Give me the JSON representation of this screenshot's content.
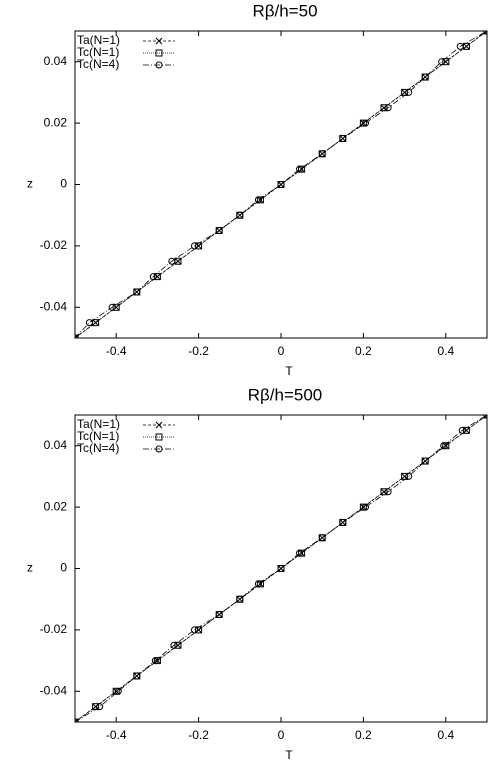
{
  "chart_data": [
    {
      "type": "line",
      "title": "Rβ/h=50",
      "x_label": "T",
      "y_label": "z",
      "xlim": [
        -0.5,
        0.5
      ],
      "ylim": [
        -0.05,
        0.05
      ],
      "xticks": [
        -0.4,
        -0.2,
        0,
        0.2,
        0.4
      ],
      "yticks": [
        -0.04,
        -0.02,
        0,
        0.02,
        0.04
      ],
      "legend": "upper left",
      "series": [
        {
          "name": "Ta(N=1)",
          "color": "#000000",
          "marker": "x",
          "dash": "3,2",
          "x": [
            -0.5,
            -0.45,
            -0.4,
            -0.35,
            -0.3,
            -0.25,
            -0.2,
            -0.15,
            -0.1,
            -0.05,
            0,
            0.05,
            0.1,
            0.15,
            0.2,
            0.25,
            0.3,
            0.35,
            0.4,
            0.45,
            0.5
          ],
          "values": [
            -0.05,
            -0.045,
            -0.04,
            -0.035,
            -0.03,
            -0.025,
            -0.02,
            -0.015,
            -0.01,
            -0.005,
            0,
            0.005,
            0.01,
            0.015,
            0.02,
            0.025,
            0.03,
            0.035,
            0.04,
            0.045,
            0.05
          ]
        },
        {
          "name": "Tc(N=1)",
          "color": "#000000",
          "marker": "square",
          "dash": "1,1",
          "x": [
            -0.5,
            -0.45,
            -0.4,
            -0.35,
            -0.3,
            -0.25,
            -0.2,
            -0.15,
            -0.1,
            -0.05,
            0,
            0.05,
            0.1,
            0.15,
            0.2,
            0.25,
            0.3,
            0.35,
            0.4,
            0.45,
            0.5
          ],
          "values": [
            -0.05,
            -0.045,
            -0.04,
            -0.035,
            -0.03,
            -0.025,
            -0.02,
            -0.015,
            -0.01,
            -0.005,
            0,
            0.005,
            0.01,
            0.015,
            0.02,
            0.025,
            0.03,
            0.035,
            0.04,
            0.045,
            0.05
          ]
        },
        {
          "name": "Tc(N=4)",
          "color": "#000000",
          "marker": "circle",
          "dash": "6,2,1,2",
          "x": [
            -0.5,
            -0.465,
            -0.41,
            -0.35,
            -0.31,
            -0.265,
            -0.21,
            -0.15,
            -0.1,
            -0.055,
            0,
            0.045,
            0.1,
            0.15,
            0.205,
            0.26,
            0.31,
            0.35,
            0.39,
            0.435,
            0.5
          ],
          "values": [
            -0.05,
            -0.045,
            -0.04,
            -0.035,
            -0.03,
            -0.025,
            -0.02,
            -0.015,
            -0.01,
            -0.005,
            0,
            0.005,
            0.01,
            0.015,
            0.02,
            0.025,
            0.03,
            0.035,
            0.04,
            0.045,
            0.05
          ]
        }
      ]
    },
    {
      "type": "line",
      "title": "Rβ/h=500",
      "x_label": "T",
      "y_label": "z",
      "xlim": [
        -0.5,
        0.5
      ],
      "ylim": [
        -0.05,
        0.05
      ],
      "xticks": [
        -0.4,
        -0.2,
        0,
        0.2,
        0.4
      ],
      "yticks": [
        -0.04,
        -0.02,
        0,
        0.02,
        0.04
      ],
      "legend": "upper left",
      "series": [
        {
          "name": "Ta(N=1)",
          "color": "#000000",
          "marker": "x",
          "dash": "3,2",
          "x": [
            -0.5,
            -0.45,
            -0.4,
            -0.35,
            -0.3,
            -0.25,
            -0.2,
            -0.15,
            -0.1,
            -0.05,
            0,
            0.05,
            0.1,
            0.15,
            0.2,
            0.25,
            0.3,
            0.35,
            0.4,
            0.45,
            0.5
          ],
          "values": [
            -0.05,
            -0.045,
            -0.04,
            -0.035,
            -0.03,
            -0.025,
            -0.02,
            -0.015,
            -0.01,
            -0.005,
            0,
            0.005,
            0.01,
            0.015,
            0.02,
            0.025,
            0.03,
            0.035,
            0.04,
            0.045,
            0.05
          ]
        },
        {
          "name": "Tc(N=1)",
          "color": "#000000",
          "marker": "square",
          "dash": "1,1",
          "x": [
            -0.5,
            -0.45,
            -0.4,
            -0.35,
            -0.3,
            -0.25,
            -0.2,
            -0.15,
            -0.1,
            -0.05,
            0,
            0.05,
            0.1,
            0.15,
            0.2,
            0.25,
            0.3,
            0.35,
            0.4,
            0.45,
            0.5
          ],
          "values": [
            -0.05,
            -0.045,
            -0.04,
            -0.035,
            -0.03,
            -0.025,
            -0.02,
            -0.015,
            -0.01,
            -0.005,
            0,
            0.005,
            0.01,
            0.015,
            0.02,
            0.025,
            0.03,
            0.035,
            0.04,
            0.045,
            0.05
          ]
        },
        {
          "name": "Tc(N=4)",
          "color": "#000000",
          "marker": "circle",
          "dash": "6,2,1,2",
          "x": [
            -0.5,
            -0.44,
            -0.395,
            -0.35,
            -0.305,
            -0.26,
            -0.21,
            -0.15,
            -0.1,
            -0.055,
            0,
            0.045,
            0.1,
            0.15,
            0.205,
            0.26,
            0.31,
            0.35,
            0.395,
            0.44,
            0.5
          ],
          "values": [
            -0.05,
            -0.045,
            -0.04,
            -0.035,
            -0.03,
            -0.025,
            -0.02,
            -0.015,
            -0.01,
            -0.005,
            0,
            0.005,
            0.01,
            0.015,
            0.02,
            0.025,
            0.03,
            0.035,
            0.04,
            0.045,
            0.05
          ]
        }
      ]
    }
  ]
}
